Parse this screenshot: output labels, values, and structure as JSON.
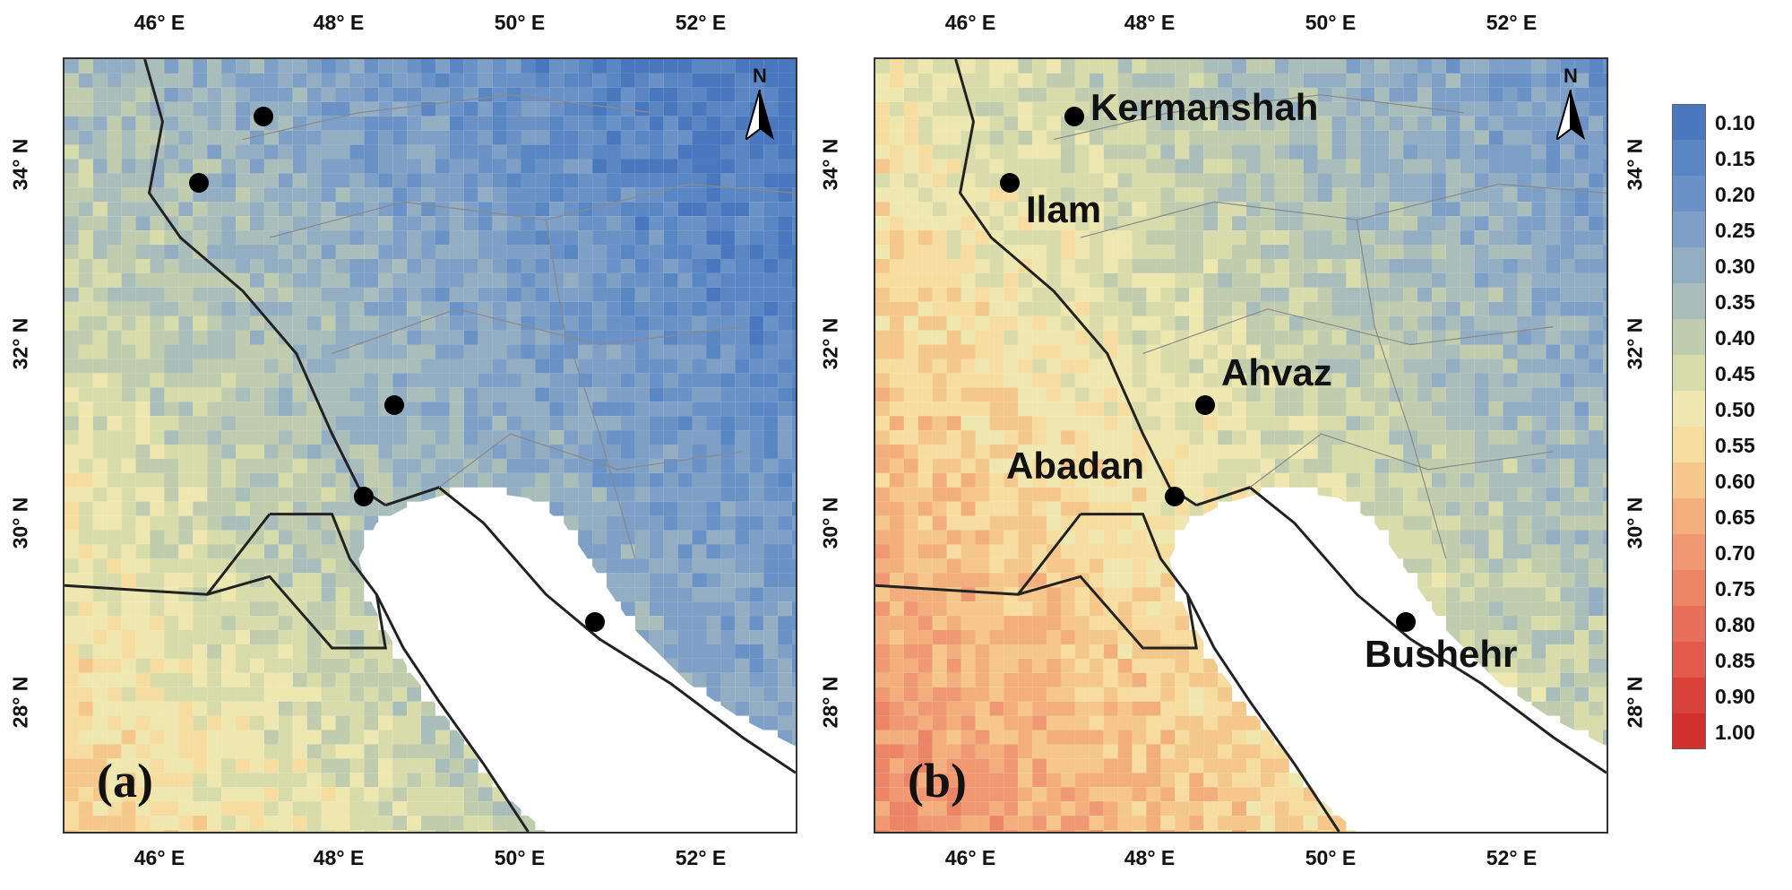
{
  "colors": {
    "scale": [
      "#4a78be",
      "#5a86c3",
      "#6a92c6",
      "#7e9fc6",
      "#93adc3",
      "#a9bdbb",
      "#c0ccae",
      "#d8dbaa",
      "#eee7b0",
      "#f6dc9e",
      "#f5c78a",
      "#f2ae7c",
      "#ef9872",
      "#ec8466",
      "#e8705a",
      "#e25a4c",
      "#d9413b",
      "#d1302c"
    ],
    "land_border": "#222222",
    "province_border": "#8a8a8a",
    "sea": "#ffffff"
  },
  "axes": {
    "lon_ticks": [
      "46° E",
      "48° E",
      "50° E",
      "52° E"
    ],
    "lat_ticks": [
      "34° N",
      "32° N",
      "30° N",
      "28° N"
    ]
  },
  "panels": [
    {
      "id": "a",
      "label": "(a)",
      "north_label": "N",
      "mean_level": 0.34
    },
    {
      "id": "b",
      "label": "(b)",
      "north_label": "N",
      "mean_level": 0.49
    }
  ],
  "cities": [
    {
      "name": "Kermanshah"
    },
    {
      "name": "Ilam"
    },
    {
      "name": "Ahvaz"
    },
    {
      "name": "Abadan"
    },
    {
      "name": "Bushehr"
    }
  ],
  "legend": {
    "values": [
      "0.10",
      "0.15",
      "0.20",
      "0.25",
      "0.30",
      "0.35",
      "0.40",
      "0.45",
      "0.50",
      "0.55",
      "0.60",
      "0.65",
      "0.70",
      "0.75",
      "0.80",
      "0.85",
      "0.90",
      "1.00"
    ]
  }
}
